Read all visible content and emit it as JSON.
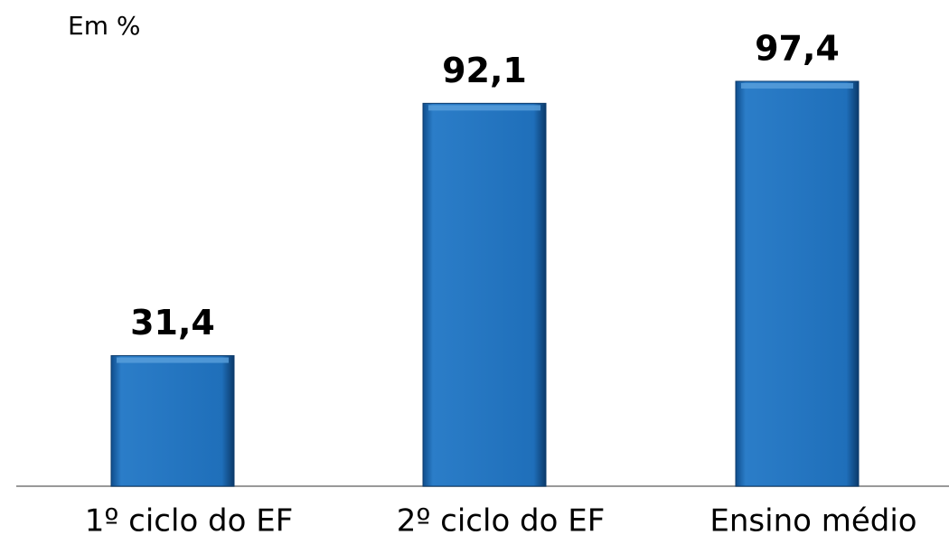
{
  "chart_data": {
    "type": "bar",
    "axis_label": "Em %",
    "categories": [
      "1º ciclo do EF",
      "2º ciclo do EF",
      "Ensino médio"
    ],
    "values": [
      31.4,
      92.1,
      97.4
    ],
    "value_labels": [
      "31,4",
      "92,1",
      "97,4"
    ],
    "color": "#1f6fba",
    "ylim": [
      0,
      100
    ]
  }
}
